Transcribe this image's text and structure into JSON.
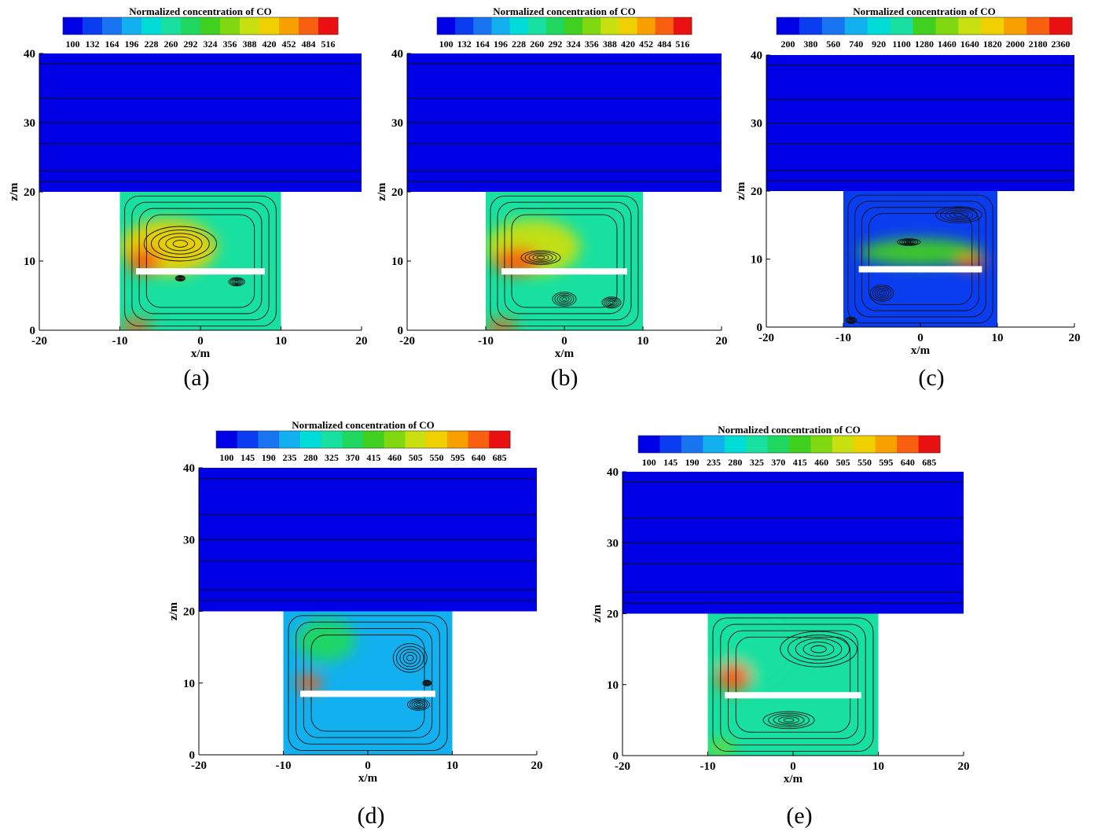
{
  "chart_data": [
    {
      "type": "heatmap",
      "panel_label": "(a)",
      "colorbar_title": "Normalized concentration of CO",
      "colorbar_levels": [
        "100",
        "132",
        "164",
        "196",
        "228",
        "260",
        "292",
        "324",
        "356",
        "388",
        "420",
        "452",
        "484",
        "516"
      ],
      "xlabel": "x/m",
      "ylabel": "z/m",
      "xticks": [
        "-20",
        "-10",
        "0",
        "10",
        "20"
      ],
      "yticks": [
        "0",
        "10",
        "20",
        "30",
        "40"
      ],
      "xlim": [
        -20,
        20
      ],
      "ylim": [
        0,
        40
      ],
      "plate": {
        "x": [
          -8,
          8
        ],
        "z": 8.5
      },
      "hotspots": [
        {
          "x": -4,
          "z": 12,
          "level": 0.78,
          "rx": 6,
          "rz": 4
        },
        {
          "x": -7,
          "z": 10,
          "level": 0.95,
          "rx": 2,
          "rz": 2
        },
        {
          "x": -8,
          "z": 0.5,
          "level": 0.9,
          "rx": 2,
          "rz": 1
        }
      ],
      "vortices": [
        {
          "x": -2.5,
          "z": 12.5,
          "rx": 4.5,
          "rz": 2.5
        },
        {
          "x": 4.5,
          "z": 7,
          "rx": 1,
          "rz": 0.6
        },
        {
          "x": -2.5,
          "z": 7.5,
          "rx": 0.6,
          "rz": 0.4
        }
      ]
    },
    {
      "type": "heatmap",
      "panel_label": "(b)",
      "colorbar_title": "Normalized concentration of CO",
      "colorbar_levels": [
        "100",
        "132",
        "164",
        "196",
        "228",
        "260",
        "292",
        "324",
        "356",
        "388",
        "420",
        "452",
        "484",
        "516"
      ],
      "xlabel": "x/m",
      "ylabel": "z/m",
      "xticks": [
        "-20",
        "-10",
        "0",
        "10",
        "20"
      ],
      "yticks": [
        "0",
        "10",
        "20",
        "30",
        "40"
      ],
      "xlim": [
        -20,
        20
      ],
      "ylim": [
        0,
        40
      ],
      "plate": {
        "x": [
          -8,
          8
        ],
        "z": 8.5
      },
      "hotspots": [
        {
          "x": -4,
          "z": 12,
          "level": 0.72,
          "rx": 6,
          "rz": 4
        },
        {
          "x": -6,
          "z": 10,
          "level": 0.95,
          "rx": 3,
          "rz": 2
        },
        {
          "x": -8,
          "z": 0.5,
          "level": 0.9,
          "rx": 2,
          "rz": 1
        }
      ],
      "vortices": [
        {
          "x": -3,
          "z": 10.5,
          "rx": 2.5,
          "rz": 1
        },
        {
          "x": 0,
          "z": 4.5,
          "rx": 1.5,
          "rz": 1
        },
        {
          "x": 6,
          "z": 4,
          "rx": 1.2,
          "rz": 0.8
        }
      ]
    },
    {
      "type": "heatmap",
      "panel_label": "(c)",
      "colorbar_title": "Normalized concentration of CO",
      "colorbar_levels": [
        "200",
        "380",
        "560",
        "740",
        "920",
        "1100",
        "1280",
        "1460",
        "1640",
        "1820",
        "2000",
        "2180",
        "2360"
      ],
      "xlabel": "x/m",
      "ylabel": "z/m",
      "xticks": [
        "-20",
        "-10",
        "0",
        "10",
        "20"
      ],
      "yticks": [
        "0",
        "10",
        "20",
        "30",
        "40"
      ],
      "xlim": [
        -20,
        20
      ],
      "ylim": [
        0,
        40
      ],
      "plate": {
        "x": [
          -8,
          8
        ],
        "z": 8.5
      },
      "hotspots": [
        {
          "x": 0,
          "z": 11,
          "level": 0.55,
          "rx": 8,
          "rz": 2
        },
        {
          "x": 6.5,
          "z": 9.5,
          "level": 0.95,
          "rx": 2,
          "rz": 1
        }
      ],
      "vortices": [
        {
          "x": 5,
          "z": 16.5,
          "rx": 3,
          "rz": 1.2
        },
        {
          "x": -1.5,
          "z": 12.5,
          "rx": 1.5,
          "rz": 0.5
        },
        {
          "x": -5,
          "z": 5,
          "rx": 1.5,
          "rz": 1.2
        },
        {
          "x": -9,
          "z": 1,
          "rx": 0.7,
          "rz": 0.5
        }
      ]
    },
    {
      "type": "heatmap",
      "panel_label": "(d)",
      "colorbar_title": "Normalized concentration of CO",
      "colorbar_levels": [
        "100",
        "145",
        "190",
        "235",
        "280",
        "325",
        "370",
        "415",
        "460",
        "505",
        "550",
        "595",
        "640",
        "685"
      ],
      "xlabel": "x/m",
      "ylabel": "z/m",
      "xticks": [
        "-20",
        "-10",
        "0",
        "10",
        "20"
      ],
      "yticks": [
        "0",
        "10",
        "20",
        "30",
        "40"
      ],
      "xlim": [
        -20,
        20
      ],
      "ylim": [
        0,
        40
      ],
      "plate": {
        "x": [
          -8,
          8
        ],
        "z": 8.5
      },
      "hotspots": [
        {
          "x": -5,
          "z": 16,
          "level": 0.45,
          "rx": 3.5,
          "rz": 3
        },
        {
          "x": -7,
          "z": 10,
          "level": 0.95,
          "rx": 1.5,
          "rz": 1.2
        }
      ],
      "vortices": [
        {
          "x": 5,
          "z": 13.5,
          "rx": 2,
          "rz": 2
        },
        {
          "x": 6,
          "z": 7,
          "rx": 1.3,
          "rz": 0.8
        },
        {
          "x": 7,
          "z": 10,
          "rx": 0.5,
          "rz": 0.4
        }
      ]
    },
    {
      "type": "heatmap",
      "panel_label": "(e)",
      "colorbar_title": "Normalized concentration of CO",
      "colorbar_levels": [
        "100",
        "145",
        "190",
        "235",
        "280",
        "325",
        "370",
        "415",
        "460",
        "505",
        "550",
        "595",
        "640",
        "685"
      ],
      "xlabel": "x/m",
      "ylabel": "z/m",
      "xticks": [
        "-20",
        "-10",
        "0",
        "10",
        "20"
      ],
      "yticks": [
        "0",
        "10",
        "20",
        "30",
        "40"
      ],
      "xlim": [
        -20,
        20
      ],
      "ylim": [
        0,
        40
      ],
      "plate": {
        "x": [
          -8,
          8
        ],
        "z": 8.5
      },
      "hotspots": [
        {
          "x": -5,
          "z": 15,
          "level": 0.42,
          "rx": 5,
          "rz": 5
        },
        {
          "x": -7,
          "z": 11,
          "level": 0.95,
          "rx": 2,
          "rz": 2
        },
        {
          "x": -8.5,
          "z": 1,
          "level": 0.6,
          "rx": 1.5,
          "rz": 1
        }
      ],
      "vortices": [
        {
          "x": 3,
          "z": 15,
          "rx": 4.5,
          "rz": 2.5
        },
        {
          "x": -0.5,
          "z": 5,
          "rx": 3,
          "rz": 1.2
        }
      ]
    }
  ]
}
